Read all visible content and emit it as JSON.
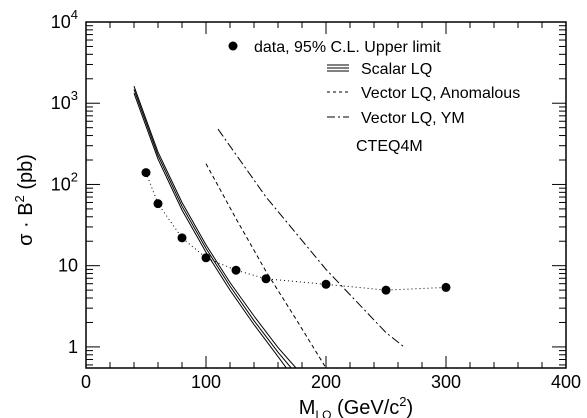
{
  "chart_data": {
    "type": "line",
    "x_axis": {
      "range": [
        0,
        400
      ],
      "ticks": [
        0,
        100,
        200,
        300,
        400
      ],
      "tick_labels": [
        "0",
        "100",
        "200",
        "300",
        "400"
      ],
      "label_main": "M",
      "label_sub": "LQ",
      "label_rest": " (GeV/c",
      "label_sup": "2",
      "label_end": ")"
    },
    "y_axis": {
      "scale": "log",
      "range": [
        0.55,
        10000
      ],
      "ticks": [
        1,
        10,
        100,
        1000,
        10000
      ],
      "tick_labels": [
        {
          "base": "1",
          "exp": ""
        },
        {
          "base": "10",
          "exp": ""
        },
        {
          "base": "10",
          "exp": "2"
        },
        {
          "base": "10",
          "exp": "3"
        },
        {
          "base": "10",
          "exp": "4"
        }
      ],
      "label_a": "σ · B",
      "label_sup": "2",
      "label_b": " (pb)"
    },
    "grid": false,
    "legend_position": "top-right",
    "legend": [
      {
        "key": "data",
        "text": "data, 95% C.L. Upper limit"
      },
      {
        "key": "scalar",
        "text": "Scalar LQ"
      },
      {
        "key": "vector_anom",
        "text": "Vector LQ, Anomalous"
      },
      {
        "key": "vector_ym",
        "text": "Vector LQ, YM"
      },
      {
        "key": "pdf",
        "text": "CTEQ4M"
      }
    ],
    "series": [
      {
        "key": "data",
        "name": "data, 95% C.L. Upper limit",
        "style": "markers",
        "x": [
          50,
          60,
          80,
          100,
          125,
          150,
          200,
          250,
          300
        ],
        "y": [
          140,
          58,
          22,
          12.5,
          8.8,
          6.9,
          5.9,
          5.0,
          5.4
        ]
      },
      {
        "key": "data_fit",
        "style": "dotted",
        "x": [
          50,
          60,
          80,
          100,
          125,
          150,
          200,
          250,
          300
        ],
        "y": [
          140,
          58,
          22,
          12.5,
          8.8,
          6.9,
          5.9,
          5.0,
          5.4
        ]
      },
      {
        "key": "scalar_upper",
        "name": "Scalar LQ",
        "style": "solid",
        "x": [
          40,
          60,
          80,
          100,
          120,
          140,
          160,
          175
        ],
        "y": [
          1620,
          250,
          60,
          18,
          6.2,
          2.4,
          0.98,
          0.55
        ]
      },
      {
        "key": "scalar_mid",
        "style": "solid",
        "x": [
          40,
          60,
          80,
          100,
          120,
          140,
          160,
          171
        ],
        "y": [
          1480,
          228,
          54,
          16.3,
          5.6,
          2.1,
          0.86,
          0.55
        ]
      },
      {
        "key": "scalar_lower",
        "style": "solid",
        "x": [
          40,
          60,
          80,
          100,
          120,
          140,
          160,
          167
        ],
        "y": [
          1330,
          205,
          48.5,
          14.6,
          5.0,
          1.88,
          0.76,
          0.55
        ]
      },
      {
        "key": "vector_anom",
        "name": "Vector LQ, Anomalous",
        "style": "dashed",
        "x": [
          100,
          125,
          150,
          175,
          200
        ],
        "y": [
          180,
          38,
          8.5,
          2.2,
          0.55
        ]
      },
      {
        "key": "vector_ym",
        "name": "Vector LQ, YM",
        "style": "dashdot",
        "x": [
          110,
          150,
          200,
          250,
          265
        ],
        "y": [
          480,
          70,
          9.0,
          1.5,
          1.0
        ]
      }
    ]
  }
}
